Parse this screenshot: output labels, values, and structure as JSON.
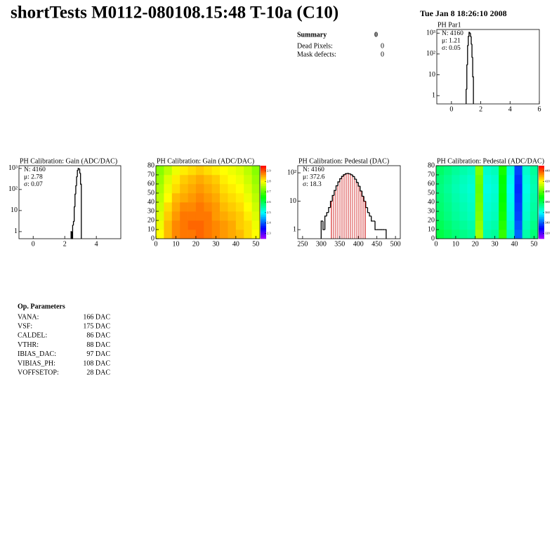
{
  "header": {
    "title": "shortTests M0112-080108.15:48 T-10a (C10)",
    "date": "Tue Jan  8 18:26:10 2008"
  },
  "summary": {
    "title": "Summary",
    "value": 0,
    "rows": [
      {
        "label": "Dead Pixels:",
        "value": 0
      },
      {
        "label": "Mask defects:",
        "value": 0
      }
    ]
  },
  "chart_data": [
    {
      "type": "histogram",
      "title": "PH Par1",
      "stats": [
        "N: 4160",
        "μ: 1.21",
        "σ: 0.05"
      ],
      "bins": [
        1.0,
        1.05,
        1.1,
        1.15,
        1.2,
        1.25,
        1.3,
        1.35,
        1.4,
        1.45,
        1.5
      ],
      "values": [
        2,
        30,
        250,
        700,
        1100,
        1000,
        700,
        300,
        70,
        8
      ],
      "color": "#000000",
      "xlim": [
        -1,
        6
      ],
      "xticks": [
        0,
        2,
        4,
        6
      ],
      "log_y": true,
      "ylim": [
        0.4,
        1500
      ],
      "yticks": [
        1,
        10,
        {
          "value": 100,
          "label": "10²"
        },
        {
          "value": 1000,
          "label": "10³"
        }
      ]
    },
    {
      "type": "histogram",
      "title": "PH Calibration: Gain (ADC/DAC)",
      "stats": [
        "N: 4160",
        "μ: 2.78",
        "σ: 0.07"
      ],
      "bins": [
        2.4,
        2.45,
        2.5,
        2.55,
        2.6,
        2.65,
        2.7,
        2.75,
        2.8,
        2.85,
        2.9,
        2.95,
        3.0,
        3.05
      ],
      "values": [
        1,
        0,
        2,
        3,
        15,
        60,
        150,
        400,
        800,
        1000,
        950,
        600,
        179
      ],
      "color": "#000000",
      "xlim": [
        -0.9,
        5.55
      ],
      "xticks": [
        0,
        2,
        4
      ],
      "log_y": true,
      "ylim": [
        0.46,
        1350
      ],
      "yticks": [
        1,
        10,
        {
          "value": 100,
          "label": "10²"
        },
        {
          "value": 1000,
          "label": "10³"
        }
      ]
    },
    {
      "type": "heatmap",
      "title": "PH Calibration: Gain (ADC/DAC)",
      "xbins": [
        0,
        4,
        8,
        12,
        16,
        20,
        24,
        28,
        32,
        36,
        40,
        44,
        48,
        52
      ],
      "ybins": [
        0,
        10,
        20,
        30,
        40,
        50,
        60,
        70,
        80
      ],
      "values": [
        [
          2.8,
          2.84,
          2.87,
          2.88,
          2.88,
          2.89,
          2.88,
          2.87,
          2.86,
          2.85,
          2.84,
          2.82,
          2.8
        ],
        [
          2.79,
          2.84,
          2.87,
          2.88,
          2.89,
          2.89,
          2.88,
          2.87,
          2.86,
          2.85,
          2.83,
          2.82,
          2.79
        ],
        [
          2.78,
          2.83,
          2.86,
          2.88,
          2.88,
          2.88,
          2.88,
          2.86,
          2.85,
          2.84,
          2.83,
          2.81,
          2.78
        ],
        [
          2.77,
          2.82,
          2.85,
          2.87,
          2.87,
          2.88,
          2.87,
          2.86,
          2.84,
          2.83,
          2.82,
          2.8,
          2.77
        ],
        [
          2.76,
          2.8,
          2.84,
          2.85,
          2.86,
          2.87,
          2.86,
          2.85,
          2.83,
          2.82,
          2.81,
          2.79,
          2.76
        ],
        [
          2.75,
          2.79,
          2.82,
          2.84,
          2.85,
          2.86,
          2.85,
          2.84,
          2.82,
          2.81,
          2.8,
          2.78,
          2.75
        ],
        [
          2.74,
          2.78,
          2.81,
          2.83,
          2.84,
          2.85,
          2.84,
          2.83,
          2.81,
          2.8,
          2.79,
          2.77,
          2.74
        ],
        [
          2.73,
          2.76,
          2.79,
          2.81,
          2.82,
          2.83,
          2.82,
          2.81,
          2.8,
          2.79,
          2.78,
          2.76,
          2.73
        ]
      ],
      "xlim": [
        0,
        52
      ],
      "xticks": [
        0,
        10,
        20,
        30,
        40,
        50
      ],
      "ylim": [
        0,
        80
      ],
      "yticks": [
        0,
        10,
        20,
        30,
        40,
        50,
        60,
        70,
        80
      ],
      "zlim": [
        2.25,
        2.95
      ],
      "zticks": [
        2.3,
        2.4,
        2.5,
        2.6,
        2.7,
        2.8,
        2.9
      ]
    },
    {
      "type": "histogram",
      "title": "PH Calibration: Pedestal (DAC)",
      "stats": [
        "N: 4160",
        "μ: 372.6",
        "σ: 18.3"
      ],
      "stats_colors": [
        "#000000",
        "#cc0000",
        "#cc0000"
      ],
      "bins": [
        300,
        305,
        310,
        315,
        320,
        325,
        330,
        335,
        340,
        345,
        350,
        355,
        360,
        365,
        370,
        375,
        380,
        385,
        390,
        395,
        400,
        405,
        410,
        415,
        420,
        425,
        430,
        435,
        440,
        445,
        450,
        455,
        460,
        465,
        470,
        475
      ],
      "values": [
        2,
        1,
        3,
        4,
        6,
        10,
        16,
        24,
        35,
        48,
        62,
        75,
        86,
        93,
        95,
        92,
        85,
        74,
        60,
        46,
        34,
        23,
        15,
        10,
        6,
        4,
        3,
        2,
        2,
        1,
        1,
        1,
        1,
        1,
        1
      ],
      "color": "#000000",
      "cut_lines": [
        327.6,
        418.6
      ],
      "cut_color": "#cc0000",
      "xlim": [
        237,
        513
      ],
      "xticks": [
        250,
        300,
        350,
        400,
        450,
        500
      ],
      "log_y": true,
      "ylim": [
        0.48,
        178
      ],
      "yticks": [
        1,
        10,
        {
          "value": 100,
          "label": "10²"
        }
      ]
    },
    {
      "type": "heatmap",
      "title": "PH Calibration: Pedestal (ADC/DAC)",
      "xbins": [
        0,
        4,
        8,
        12,
        16,
        20,
        24,
        28,
        32,
        36,
        40,
        44,
        48,
        52
      ],
      "ybins": [
        0,
        10,
        20,
        30,
        40,
        50,
        60,
        70,
        80
      ],
      "values": [
        [
          382,
          379,
          376,
          374,
          372,
          409,
          370,
          372,
          396,
          368,
          342,
          370,
          376
        ],
        [
          380,
          377,
          374,
          372,
          370,
          407,
          368,
          370,
          394,
          366,
          340,
          368,
          374
        ],
        [
          378,
          375,
          372,
          370,
          368,
          405,
          366,
          368,
          392,
          364,
          338,
          366,
          372
        ],
        [
          377,
          374,
          371,
          369,
          367,
          404,
          365,
          367,
          391,
          363,
          337,
          365,
          371
        ],
        [
          376,
          373,
          370,
          368,
          366,
          403,
          364,
          366,
          390,
          362,
          336,
          364,
          370
        ],
        [
          375,
          372,
          369,
          367,
          365,
          402,
          363,
          365,
          389,
          361,
          335,
          363,
          369
        ],
        [
          376,
          373,
          370,
          368,
          366,
          403,
          364,
          366,
          390,
          362,
          336,
          364,
          370
        ],
        [
          378,
          375,
          372,
          370,
          368,
          405,
          366,
          368,
          392,
          364,
          338,
          366,
          372
        ]
      ],
      "xlim": [
        0,
        52
      ],
      "xticks": [
        0,
        10,
        20,
        30,
        40,
        50
      ],
      "ylim": [
        0,
        80
      ],
      "yticks": [
        0,
        10,
        20,
        30,
        40,
        50,
        60,
        70,
        80
      ],
      "zlim": [
        310,
        450
      ],
      "zticks": [
        320,
        340,
        360,
        380,
        400,
        420,
        440
      ]
    }
  ],
  "op_parameters": {
    "title": "Op. Parameters",
    "rows": [
      [
        "VANA:",
        "166 DAC"
      ],
      [
        "VSF:",
        "175 DAC"
      ],
      [
        "CALDEL:",
        "86 DAC"
      ],
      [
        "VTHR:",
        "88 DAC"
      ],
      [
        "IBIAS_DAC:",
        "97 DAC"
      ],
      [
        "VIBIAS_PH:",
        "108 DAC"
      ],
      [
        "VOFFSETOP:",
        "28 DAC"
      ]
    ]
  }
}
